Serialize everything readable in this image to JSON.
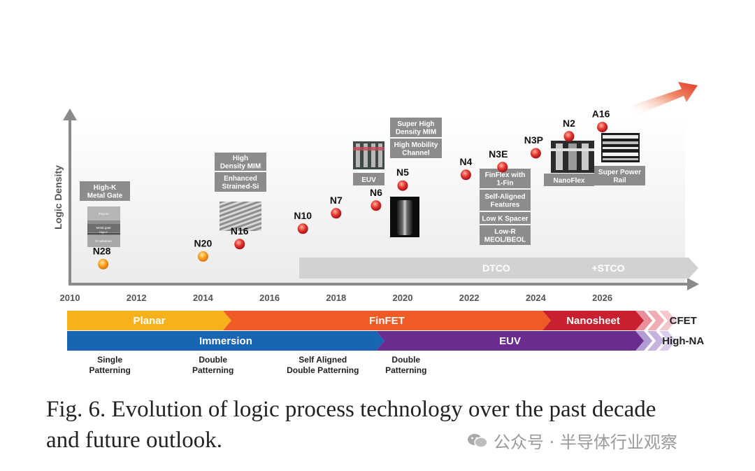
{
  "chart_data": {
    "type": "scatter",
    "ylabel": "Logic Density",
    "x_ticks": [
      "2010",
      "2012",
      "2014",
      "2016",
      "2018",
      "2020",
      "2022",
      "2024",
      "2026"
    ],
    "xlim": [
      2010,
      2028.5
    ],
    "points": [
      {
        "label": "N28",
        "x": 2011.0,
        "y": 0.08
      },
      {
        "label": "N20",
        "x": 2014.0,
        "y": 0.13
      },
      {
        "label": "N16",
        "x": 2015.1,
        "y": 0.21
      },
      {
        "label": "N10",
        "x": 2017.0,
        "y": 0.31
      },
      {
        "label": "N7",
        "x": 2018.0,
        "y": 0.41
      },
      {
        "label": "N6",
        "x": 2019.2,
        "y": 0.46
      },
      {
        "label": "N5",
        "x": 2020.0,
        "y": 0.59
      },
      {
        "label": "N4",
        "x": 2021.9,
        "y": 0.66
      },
      {
        "label": "N3E",
        "x": 2023.0,
        "y": 0.71
      },
      {
        "label": "N3P",
        "x": 2024.0,
        "y": 0.8
      },
      {
        "label": "N2",
        "x": 2025.0,
        "y": 0.91
      },
      {
        "label": "A16",
        "x": 2026.0,
        "y": 0.97
      }
    ],
    "feature_boxes": {
      "n28": [
        "High-K\nMetal Gate"
      ],
      "n16": [
        "High\nDensity MIM",
        "Enhanced\nStrained-Si"
      ],
      "n6": [
        "EUV"
      ],
      "n5": [
        "Super High\nDensity MIM",
        "High Mobility\nChannel"
      ],
      "n3e": [
        "FinFlex with\n1-Fin",
        "Self-Aligned\nFeatures",
        "Low K Spacer",
        "Low-R\nMEOL/BEOL"
      ],
      "n2": [
        "NanoFlex"
      ],
      "a16": [
        "Super Power\nRail"
      ]
    },
    "image_labels": [
      "Poly-Si",
      "Metal gate",
      "High-K",
      "Si substrate"
    ],
    "dtco_bar": {
      "left": "DTCO",
      "right": "+STCO"
    },
    "transistor_band": [
      {
        "label": "Planar",
        "start": 2010,
        "end": 2014.6,
        "color": "#f7b11a"
      },
      {
        "label": "FinFET",
        "start": 2014.6,
        "end": 2024.2,
        "color": "#ef5b25"
      },
      {
        "label": "Nanosheet",
        "start": 2024.2,
        "end": 2027.0,
        "color": "#c8202e"
      },
      {
        "label": "CFET",
        "start": 2027.0,
        "end": 2028.5,
        "color": "#e9909a"
      }
    ],
    "lithography_band": [
      {
        "label": "Immersion",
        "start": 2010,
        "end": 2019.2,
        "color": "#1866b3"
      },
      {
        "label": "EUV",
        "start": 2019.2,
        "end": 2027.0,
        "color": "#6a2c8f"
      },
      {
        "label": "High-NA",
        "start": 2027.0,
        "end": 2028.5,
        "color": "#b39bd3"
      }
    ],
    "patterning_labels": [
      {
        "text": "Single\nPatterning",
        "x": 2011.2
      },
      {
        "text": "Double\nPatterning",
        "x": 2014.3
      },
      {
        "text": "Self Aligned\nDouble Patterning",
        "x": 2017.6
      },
      {
        "text": "Double\nPatterning",
        "x": 2020.1
      }
    ],
    "colors": {
      "axis": "#8a8a8a",
      "plot_bg": "#f2f2f2",
      "label_box": "#8c8c8c",
      "dot_early": "#f7a21b",
      "dot_late": "#d0202f",
      "arrow": "#e23a26"
    }
  },
  "caption": {
    "line1": "Fig. 6. Evolution of logic process technology over the past decade",
    "line2": "and future outlook."
  },
  "watermark": {
    "text": "公众号 · 半导体行业观察",
    "icon": "wechat-icon"
  }
}
